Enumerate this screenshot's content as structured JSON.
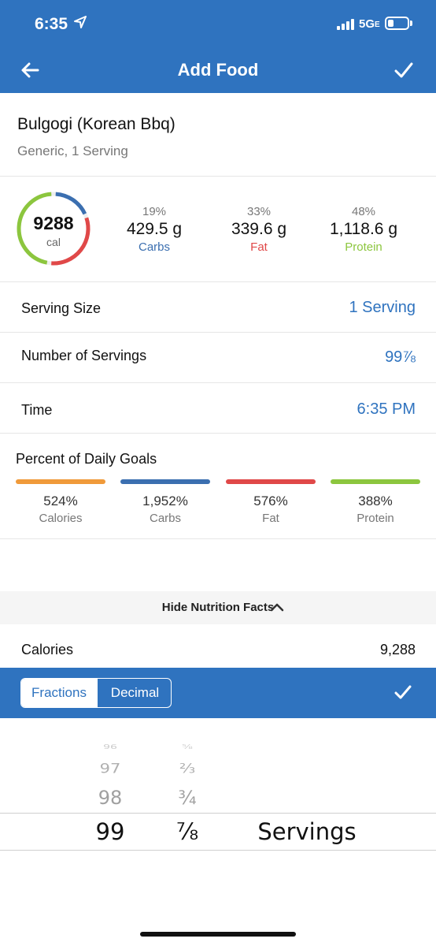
{
  "status_bar": {
    "time": "6:35",
    "network": "5G",
    "network_sub": "E",
    "battery_level": 0.3
  },
  "nav": {
    "title": "Add Food",
    "back_icon": "arrow-left-icon",
    "confirm_icon": "check-icon"
  },
  "food": {
    "name": "Bulgogi (Korean Bbq)",
    "subtitle": "Generic, 1 Serving"
  },
  "summary": {
    "calories": "9288",
    "calories_unit": "cal",
    "ring_fractions": {
      "carbs": 0.19,
      "fat": 0.33,
      "protein": 0.48
    },
    "macros": [
      {
        "percent": "19%",
        "value": "429.5 g",
        "name": "Carbs",
        "color": "#3b6fb0"
      },
      {
        "percent": "33%",
        "value": "339.6 g",
        "name": "Fat",
        "color": "#e04848"
      },
      {
        "percent": "48%",
        "value": "1,118.6 g",
        "name": "Protein",
        "color": "#8cc63e"
      }
    ]
  },
  "rows": {
    "serving_size": {
      "label": "Serving Size",
      "value": "1 Serving"
    },
    "num_servings": {
      "label": "Number of Servings",
      "value": "99⅞"
    },
    "time": {
      "label": "Time",
      "value": "6:35 PM"
    }
  },
  "daily_goals": {
    "title": "Percent of Daily Goals",
    "items": [
      {
        "percent": "524%",
        "name": "Calories",
        "color": "#f09a3a"
      },
      {
        "percent": "1,952%",
        "name": "Carbs",
        "color": "#3b6fb0"
      },
      {
        "percent": "576%",
        "name": "Fat",
        "color": "#e04848"
      },
      {
        "percent": "388%",
        "name": "Protein",
        "color": "#8cc63e"
      }
    ]
  },
  "nutrition_facts": {
    "toggle_label": "Hide Nutrition Facts",
    "calories_label": "Calories",
    "calories_value": "9,288"
  },
  "picker": {
    "segments": {
      "fractions": "Fractions",
      "decimal": "Decimal",
      "selected": "Fractions"
    },
    "whole_numbers": [
      "96",
      "97",
      "98",
      "99"
    ],
    "fractions": [
      "⅝",
      "⅔",
      "¾",
      "⅞"
    ],
    "unit": "Servings"
  },
  "colors": {
    "brand": "#2f73bf"
  }
}
